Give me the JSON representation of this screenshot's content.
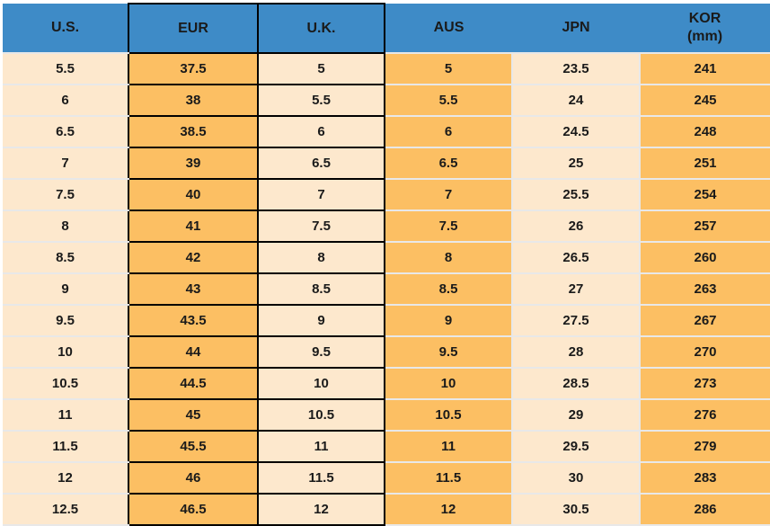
{
  "table": {
    "columns": [
      {
        "key": "us",
        "label": "U.S."
      },
      {
        "key": "eur",
        "label": "EUR"
      },
      {
        "key": "uk",
        "label": "U.K."
      },
      {
        "key": "aus",
        "label": "AUS"
      },
      {
        "key": "jpn",
        "label": "JPN"
      },
      {
        "key": "kor",
        "label": "KOR",
        "sublabel": "(mm)"
      }
    ],
    "rows": [
      [
        "5.5",
        "37.5",
        "5",
        "5",
        "23.5",
        "241"
      ],
      [
        "6",
        "38",
        "5.5",
        "5.5",
        "24",
        "245"
      ],
      [
        "6.5",
        "38.5",
        "6",
        "6",
        "24.5",
        "248"
      ],
      [
        "7",
        "39",
        "6.5",
        "6.5",
        "25",
        "251"
      ],
      [
        "7.5",
        "40",
        "7",
        "7",
        "25.5",
        "254"
      ],
      [
        "8",
        "41",
        "7.5",
        "7.5",
        "26",
        "257"
      ],
      [
        "8.5",
        "42",
        "8",
        "8",
        "26.5",
        "260"
      ],
      [
        "9",
        "43",
        "8.5",
        "8.5",
        "27",
        "263"
      ],
      [
        "9.5",
        "43.5",
        "9",
        "9",
        "27.5",
        "267"
      ],
      [
        "10",
        "44",
        "9.5",
        "9.5",
        "28",
        "270"
      ],
      [
        "10.5",
        "44.5",
        "10",
        "10",
        "28.5",
        "273"
      ],
      [
        "11",
        "45",
        "10.5",
        "10.5",
        "29",
        "276"
      ],
      [
        "11.5",
        "45.5",
        "11",
        "11",
        "29.5",
        "279"
      ],
      [
        "12",
        "46",
        "11.5",
        "11.5",
        "30",
        "283"
      ],
      [
        "12.5",
        "46.5",
        "12",
        "12",
        "30.5",
        "286"
      ]
    ]
  },
  "colors": {
    "header_bg": "#3e8bc7",
    "orange": "#fcbf63",
    "cream": "#fde8cd",
    "separator": "#e8e8e8",
    "border_black": "#000000",
    "text": "#1a1a1a"
  }
}
